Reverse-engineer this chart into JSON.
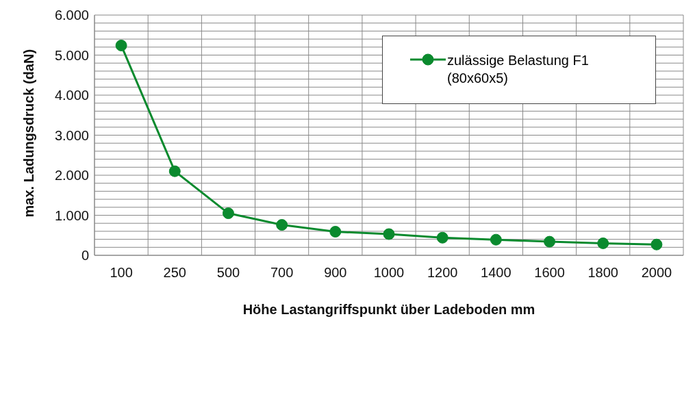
{
  "chart_data": {
    "type": "line",
    "xlabel": "Höhe Lastangriffspunkt über Ladeboden mm",
    "ylabel": "max. Ladungsdruck (daN)",
    "categories": [
      "100",
      "250",
      "500",
      "700",
      "900",
      "1000",
      "1200",
      "1400",
      "1600",
      "1800",
      "2000"
    ],
    "series": [
      {
        "name": "zulässige Belastung F1 (80x60x5)",
        "color": "#0a8a2e",
        "values": [
          5240,
          2100,
          1050,
          760,
          590,
          530,
          440,
          390,
          340,
          300,
          270
        ]
      }
    ],
    "ylim": [
      0,
      6000
    ],
    "yticks": [
      {
        "value": 0,
        "label": "0"
      },
      {
        "value": 200,
        "label": null
      },
      {
        "value": 400,
        "label": null
      },
      {
        "value": 600,
        "label": null
      },
      {
        "value": 800,
        "label": null
      },
      {
        "value": 1000,
        "label": "1.000"
      },
      {
        "value": 1200,
        "label": null
      },
      {
        "value": 1400,
        "label": null
      },
      {
        "value": 1600,
        "label": null
      },
      {
        "value": 1800,
        "label": null
      },
      {
        "value": 2000,
        "label": "2.000"
      },
      {
        "value": 2200,
        "label": null
      },
      {
        "value": 2400,
        "label": null
      },
      {
        "value": 2600,
        "label": null
      },
      {
        "value": 2800,
        "label": null
      },
      {
        "value": 3000,
        "label": "3.000"
      },
      {
        "value": 3200,
        "label": null
      },
      {
        "value": 3400,
        "label": null
      },
      {
        "value": 3600,
        "label": null
      },
      {
        "value": 3800,
        "label": null
      },
      {
        "value": 4000,
        "label": "4.000"
      },
      {
        "value": 4200,
        "label": null
      },
      {
        "value": 4400,
        "label": null
      },
      {
        "value": 4600,
        "label": null
      },
      {
        "value": 4800,
        "label": null
      },
      {
        "value": 5000,
        "label": "5.000"
      },
      {
        "value": 5200,
        "label": null
      },
      {
        "value": 5400,
        "label": null
      },
      {
        "value": 5600,
        "label": null
      },
      {
        "value": 5800,
        "label": null
      },
      {
        "value": 6000,
        "label": "6.000"
      }
    ],
    "grid": true,
    "legend": "top right",
    "marker": "circle",
    "line_style": "solid"
  }
}
